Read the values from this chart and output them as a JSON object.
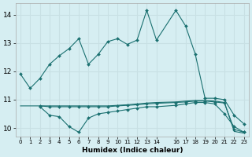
{
  "title": "",
  "xlabel": "Humidex (Indice chaleur)",
  "background_color": "#d6eef2",
  "line_color": "#1a7070",
  "grid_color": "#c8e0e4",
  "ylim": [
    9.7,
    14.4
  ],
  "xlim": [
    -0.5,
    23.5
  ],
  "yticks": [
    10,
    11,
    12,
    13,
    14
  ],
  "xticks": [
    0,
    1,
    2,
    3,
    4,
    5,
    6,
    7,
    8,
    9,
    10,
    11,
    12,
    13,
    14,
    16,
    17,
    18,
    19,
    20,
    21,
    22,
    23
  ],
  "line1_x": [
    0,
    1,
    2,
    3,
    4,
    5,
    6,
    7,
    8,
    9,
    10,
    11,
    12,
    13,
    14,
    16,
    17,
    18,
    19,
    20,
    21,
    22,
    23
  ],
  "line1_y": [
    11.9,
    11.4,
    11.75,
    12.25,
    12.55,
    12.8,
    13.15,
    12.25,
    12.6,
    13.05,
    13.15,
    12.95,
    13.1,
    14.15,
    13.1,
    14.15,
    13.6,
    12.6,
    11.05,
    11.05,
    11.0,
    10.45,
    10.15
  ],
  "line2_x": [
    2,
    3,
    4,
    5,
    6,
    7,
    8,
    9,
    10,
    11,
    12,
    13,
    14,
    16,
    17,
    18,
    19,
    20,
    21,
    22,
    23
  ],
  "line2_y": [
    10.75,
    10.45,
    10.4,
    10.05,
    9.85,
    10.35,
    10.5,
    10.55,
    10.6,
    10.65,
    10.7,
    10.75,
    10.75,
    10.8,
    10.85,
    10.9,
    10.9,
    10.85,
    10.5,
    10.05,
    9.85
  ],
  "line3_x": [
    2,
    3,
    4,
    5,
    6,
    7,
    8,
    9,
    10,
    11,
    12,
    13,
    14,
    16,
    17,
    18,
    19,
    20,
    21,
    22,
    23
  ],
  "line3_y": [
    10.78,
    10.75,
    10.75,
    10.75,
    10.75,
    10.75,
    10.75,
    10.75,
    10.78,
    10.8,
    10.82,
    10.85,
    10.87,
    10.9,
    10.92,
    10.95,
    10.95,
    10.92,
    10.88,
    9.95,
    9.85
  ],
  "line4_x": [
    0,
    2,
    3,
    4,
    5,
    6,
    7,
    8,
    9,
    10,
    11,
    12,
    13,
    14,
    16,
    17,
    18,
    19,
    20,
    21,
    22,
    23
  ],
  "line4_y": [
    10.78,
    10.78,
    10.78,
    10.78,
    10.78,
    10.78,
    10.78,
    10.78,
    10.78,
    10.8,
    10.82,
    10.85,
    10.88,
    10.9,
    10.92,
    10.95,
    10.97,
    10.97,
    10.95,
    10.9,
    9.88,
    9.82
  ]
}
